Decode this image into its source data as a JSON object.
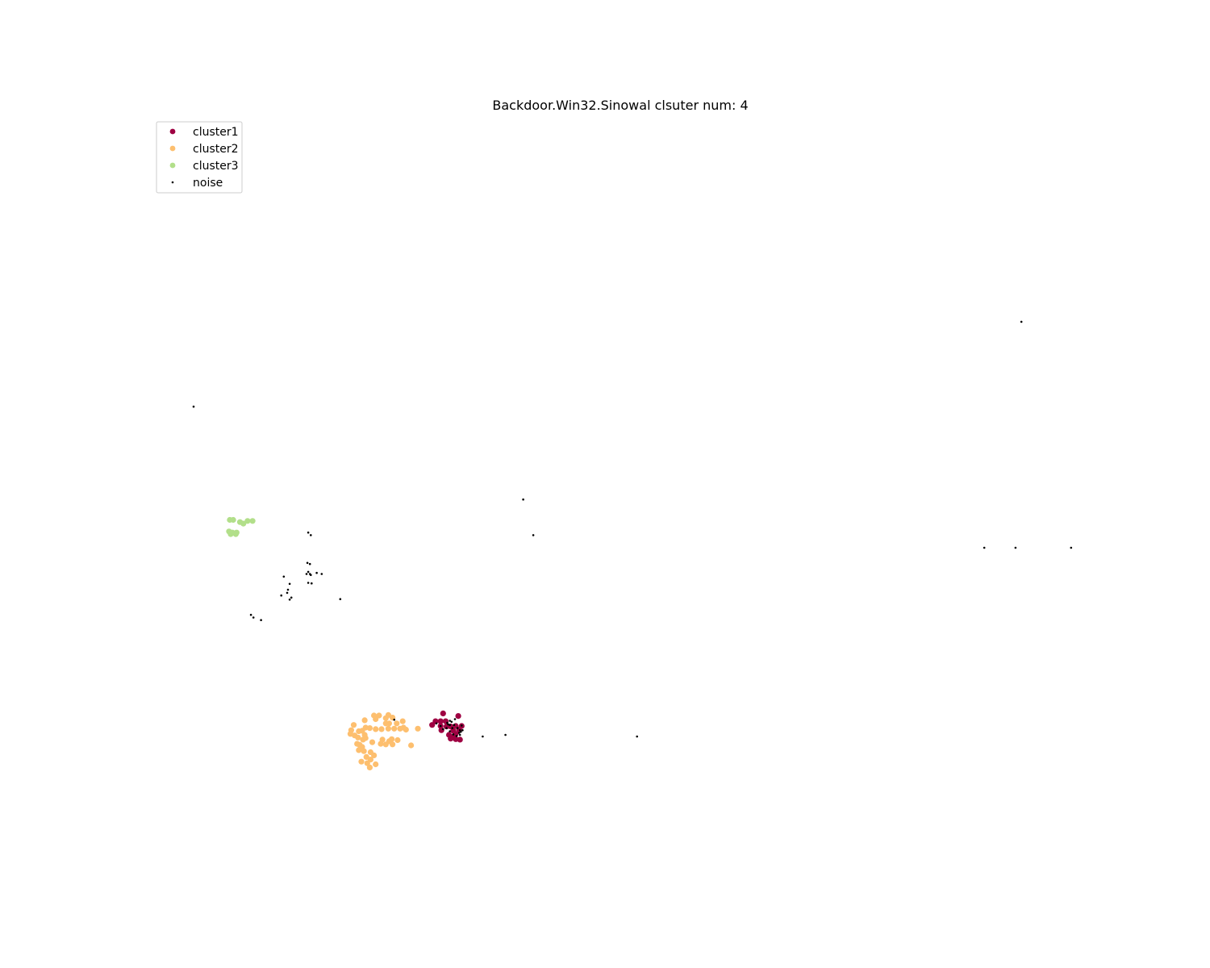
{
  "chart_data": {
    "type": "scatter",
    "title": "Backdoor.Win32.Sinowal clsuter num: 4",
    "xlabel": "",
    "ylabel": "",
    "axes_visible": false,
    "grid": false,
    "xlim": [
      0,
      100
    ],
    "ylim": [
      0,
      100
    ],
    "legend": {
      "placement": "top-left"
    },
    "series": [
      {
        "name": "cluster1",
        "color": "#9e0142",
        "marker": "large",
        "points": [
          [
            29.6,
            22.4
          ],
          [
            31.4,
            21.9
          ],
          [
            28.7,
            20.9
          ],
          [
            29.3,
            20.9
          ],
          [
            29.9,
            20.9
          ],
          [
            28.3,
            20.2
          ],
          [
            29.3,
            20.0
          ],
          [
            30.0,
            19.9
          ],
          [
            30.5,
            19.9
          ],
          [
            31.1,
            20.0
          ],
          [
            31.8,
            20.0
          ],
          [
            31.5,
            19.3
          ],
          [
            31.1,
            18.5
          ],
          [
            30.3,
            18.3
          ],
          [
            30.7,
            17.9
          ],
          [
            31.1,
            17.5
          ],
          [
            31.6,
            17.4
          ],
          [
            30.5,
            17.6
          ],
          [
            29.4,
            19.2
          ],
          [
            30.8,
            19.1
          ]
        ]
      },
      {
        "name": "cluster2",
        "color": "#fdbf6f",
        "marker": "large",
        "points": [
          [
            21.4,
            22.0
          ],
          [
            22.0,
            22.0
          ],
          [
            23.1,
            22.1
          ],
          [
            23.6,
            21.6
          ],
          [
            22.8,
            21.5
          ],
          [
            21.6,
            21.3
          ],
          [
            20.3,
            21.1
          ],
          [
            24.8,
            20.9
          ],
          [
            22.8,
            20.5
          ],
          [
            23.2,
            20.5
          ],
          [
            24.1,
            20.5
          ],
          [
            19.0,
            20.2
          ],
          [
            20.4,
            19.7
          ],
          [
            20.9,
            19.6
          ],
          [
            21.6,
            19.4
          ],
          [
            22.3,
            19.4
          ],
          [
            23.1,
            19.5
          ],
          [
            23.8,
            19.5
          ],
          [
            24.5,
            19.5
          ],
          [
            25.2,
            19.3
          ],
          [
            24.9,
            19.7
          ],
          [
            26.6,
            19.5
          ],
          [
            18.7,
            19.2
          ],
          [
            19.6,
            19.0
          ],
          [
            20.0,
            19.1
          ],
          [
            19.1,
            18.2
          ],
          [
            19.5,
            17.8
          ],
          [
            20.1,
            17.4
          ],
          [
            20.4,
            17.7
          ],
          [
            22.4,
            17.4
          ],
          [
            23.5,
            17.5
          ],
          [
            24.2,
            17.3
          ],
          [
            23.2,
            17.1
          ],
          [
            21.2,
            16.9
          ],
          [
            22.2,
            16.6
          ],
          [
            22.8,
            16.5
          ],
          [
            23.6,
            16.5
          ],
          [
            25.8,
            16.3
          ],
          [
            19.4,
            16.6
          ],
          [
            19.7,
            16.4
          ],
          [
            20.0,
            16.0
          ],
          [
            19.6,
            15.4
          ],
          [
            20.2,
            15.2
          ],
          [
            21.0,
            15.0
          ],
          [
            20.5,
            14.1
          ],
          [
            21.4,
            14.4
          ],
          [
            21.0,
            13.6
          ],
          [
            19.9,
            13.2
          ],
          [
            20.6,
            12.9
          ],
          [
            21.6,
            12.7
          ],
          [
            20.9,
            12.1
          ],
          [
            18.6,
            18.5
          ],
          [
            20.3,
            18.3
          ]
        ]
      },
      {
        "name": "cluster3",
        "color": "#b2df8a",
        "marker": "large",
        "points": [
          [
            4.3,
            59.3
          ],
          [
            4.7,
            59.3
          ],
          [
            5.5,
            58.9
          ],
          [
            5.9,
            58.6
          ],
          [
            6.4,
            59.1
          ],
          [
            7.0,
            59.1
          ],
          [
            4.2,
            57.1
          ],
          [
            4.6,
            56.9
          ],
          [
            5.1,
            56.9
          ],
          [
            4.4,
            56.6
          ],
          [
            5.0,
            56.6
          ]
        ]
      },
      {
        "name": "noise",
        "color": "#000000",
        "marker": "small",
        "points": [
          [
            98.2,
            97.1
          ],
          [
            0.0,
            80.9
          ],
          [
            39.1,
            63.2
          ],
          [
            97.5,
            54.0
          ],
          [
            40.3,
            56.4
          ],
          [
            13.6,
            56.9
          ],
          [
            13.9,
            56.4
          ],
          [
            93.8,
            54.0
          ],
          [
            104.1,
            54.0
          ],
          [
            13.5,
            51.1
          ],
          [
            13.8,
            50.9
          ],
          [
            13.4,
            49.0
          ],
          [
            13.8,
            49.0
          ],
          [
            14.6,
            49.2
          ],
          [
            15.2,
            49.0
          ],
          [
            13.6,
            49.4
          ],
          [
            13.9,
            48.8
          ],
          [
            13.6,
            47.3
          ],
          [
            14.0,
            47.2
          ],
          [
            10.7,
            48.5
          ],
          [
            11.4,
            47.1
          ],
          [
            11.2,
            46.0
          ],
          [
            11.1,
            45.4
          ],
          [
            10.4,
            44.9
          ],
          [
            11.6,
            44.5
          ],
          [
            11.4,
            44.1
          ],
          [
            17.4,
            44.2
          ],
          [
            6.8,
            41.2
          ],
          [
            7.1,
            40.7
          ],
          [
            8.0,
            40.2
          ],
          [
            23.8,
            21.2
          ],
          [
            30.4,
            20.2
          ],
          [
            30.0,
            19.6
          ],
          [
            30.7,
            19.6
          ],
          [
            31.5,
            18.7
          ],
          [
            31.2,
            18.1
          ],
          [
            29.3,
            20.0
          ],
          [
            30.1,
            20.6
          ],
          [
            30.8,
            18.4
          ],
          [
            31.8,
            20.1
          ],
          [
            30.6,
            20.8
          ],
          [
            31.0,
            21.3
          ],
          [
            30.4,
            21.0
          ],
          [
            31.3,
            19.6
          ],
          [
            31.6,
            19.2
          ],
          [
            30.2,
            20.3
          ],
          [
            31.9,
            19.2
          ],
          [
            30.9,
            20.2
          ],
          [
            29.6,
            19.4
          ],
          [
            31.7,
            18.9
          ],
          [
            30.4,
            19.0
          ],
          [
            31.6,
            18.3
          ],
          [
            28.8,
            20.5
          ],
          [
            34.3,
            18.0
          ],
          [
            37.0,
            18.3
          ],
          [
            52.6,
            18.0
          ]
        ]
      }
    ]
  }
}
